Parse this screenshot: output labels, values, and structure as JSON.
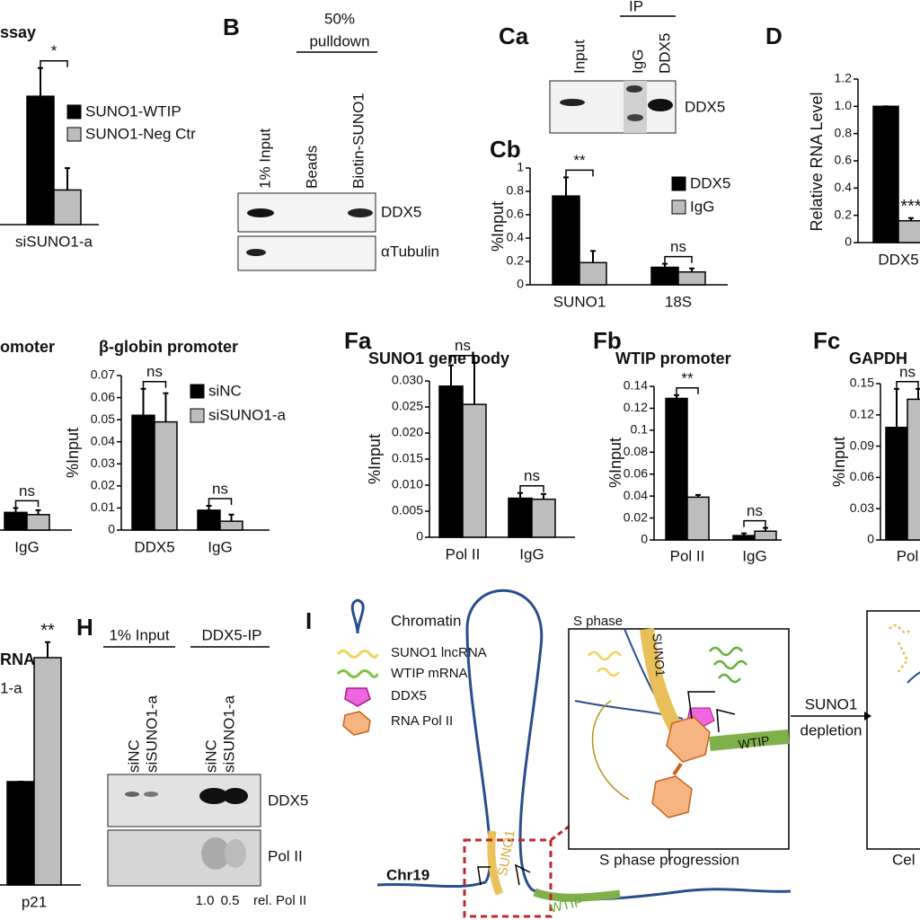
{
  "chart_data": [
    {
      "type": "bar",
      "title": "ssay",
      "categories": [
        "siSUNO1-a"
      ],
      "series": [
        {
          "name": "SUNO1-WTIP",
          "color": "#000000",
          "values": [
            1.0
          ],
          "errors": [
            0.22
          ]
        },
        {
          "name": "SUNO1-Neg Ctr",
          "color": "#bdbdbd",
          "values": [
            0.27
          ],
          "errors": [
            0.17
          ]
        }
      ],
      "significance": [
        "*"
      ],
      "ylim": [
        0,
        1.4
      ]
    },
    {
      "type": "bar",
      "title": "omoter",
      "categories": [
        "IgG"
      ],
      "series": [
        {
          "color": "#000000",
          "values": [
            0.008
          ],
          "errors": [
            0.002
          ]
        },
        {
          "color": "#bdbdbd",
          "values": [
            0.007
          ],
          "errors": [
            0.002
          ]
        }
      ],
      "significance": [
        "ns"
      ],
      "ylim": [
        0,
        0.07
      ]
    },
    {
      "type": "bar",
      "panel": "Cb",
      "ylabel": "%Input",
      "categories": [
        "SUNO1",
        "18S"
      ],
      "series": [
        {
          "name": "DDX5",
          "color": "#000000",
          "values": [
            0.76,
            0.15
          ],
          "errors": [
            0.16,
            0.03
          ]
        },
        {
          "name": "IgG",
          "color": "#bdbdbd",
          "values": [
            0.19,
            0.11
          ],
          "errors": [
            0.1,
            0.03
          ]
        }
      ],
      "significance": [
        "**",
        "ns"
      ],
      "ylim": [
        0,
        1
      ],
      "yticks": [
        0,
        0.2,
        0.4,
        0.6,
        0.8,
        1
      ],
      "legend": "upper right"
    },
    {
      "type": "bar",
      "panel": "D",
      "ylabel": "Relative RNA Level",
      "categories": [
        "DDX5"
      ],
      "series": [
        {
          "color": "#000000",
          "values": [
            1.0
          ],
          "errors": [
            0
          ]
        },
        {
          "color": "#bdbdbd",
          "values": [
            0.16
          ],
          "errors": [
            0.02
          ]
        }
      ],
      "significance": [
        "***"
      ],
      "ylim": [
        0,
        1.2
      ],
      "yticks": [
        0,
        0.2,
        0.4,
        0.6,
        0.8,
        {
          "value": 1,
          "label": "1.0"
        },
        1.2
      ]
    },
    {
      "type": "bar",
      "title": "β-globin promoter",
      "ylabel": "%Input",
      "categories": [
        "DDX5",
        "IgG"
      ],
      "series": [
        {
          "name": "siNC",
          "color": "#000000",
          "values": [
            0.052,
            0.009
          ],
          "errors": [
            0.012,
            0.002
          ]
        },
        {
          "name": "siSUNO1-a",
          "color": "#bdbdbd",
          "values": [
            0.049,
            0.004
          ],
          "errors": [
            0.013,
            0.003
          ]
        }
      ],
      "significance": [
        "ns",
        "ns"
      ],
      "ylim": [
        0,
        0.07
      ],
      "yticks": [
        0,
        0.01,
        0.02,
        0.03,
        0.04,
        0.05,
        0.06,
        0.07
      ],
      "legend": "upper right"
    },
    {
      "type": "bar",
      "panel": "Fa",
      "title": "SUNO1 gene body",
      "ylabel": "%Input",
      "categories": [
        "Pol II",
        "IgG"
      ],
      "series": [
        {
          "color": "#000000",
          "values": [
            0.029,
            0.0075
          ],
          "errors": [
            0.004,
            0.001
          ]
        },
        {
          "color": "#bdbdbd",
          "values": [
            0.0255,
            0.0073
          ],
          "errors": [
            0.008,
            0.001
          ]
        }
      ],
      "significance": [
        "ns",
        "ns"
      ],
      "ylim": [
        0,
        0.03
      ],
      "yticks": [
        0,
        0.005,
        {
          "value": 0.01,
          "label": "0.010"
        },
        0.015,
        {
          "value": 0.02,
          "label": "0.020"
        },
        0.025,
        {
          "value": 0.03,
          "label": "0.030"
        }
      ]
    },
    {
      "type": "bar",
      "panel": "Fb",
      "title": "WTIP promoter",
      "ylabel": "%Input",
      "categories": [
        "Pol II",
        "IgG"
      ],
      "series": [
        {
          "color": "#000000",
          "values": [
            0.129,
            0.004
          ],
          "errors": [
            0.003,
            0.002
          ]
        },
        {
          "color": "#bdbdbd",
          "values": [
            0.039,
            0.008
          ],
          "errors": [
            0.002,
            0.003
          ]
        }
      ],
      "significance": [
        "**",
        "ns"
      ],
      "ylim": [
        0,
        0.14
      ],
      "yticks": [
        0,
        0.02,
        0.04,
        0.06,
        0.08,
        0.1,
        0.12,
        0.14
      ]
    },
    {
      "type": "bar",
      "panel": "Fc",
      "title": "GAPDH",
      "ylabel": "%Input",
      "categories": [
        "Pol"
      ],
      "series": [
        {
          "color": "#000000",
          "values": [
            0.108
          ],
          "errors": [
            0.037
          ]
        },
        {
          "color": "#bdbdbd",
          "values": [
            0.135
          ],
          "errors": [
            0.01
          ]
        }
      ],
      "significance": [
        "ns"
      ],
      "ylim": [
        0,
        0.15
      ],
      "yticks": [
        0,
        0.03,
        0.06,
        0.09,
        0.12,
        0.15
      ]
    },
    {
      "type": "bar",
      "title": "RNA",
      "categories": [
        "p21"
      ],
      "series": [
        {
          "color": "#000000",
          "values": [
            1.0
          ],
          "errors": [
            0
          ]
        },
        {
          "name": "1-a",
          "color": "#bdbdbd",
          "values": [
            2.2
          ],
          "errors": [
            0.15
          ]
        }
      ],
      "significance": [
        "**"
      ],
      "ylim": [
        0,
        2.5
      ]
    }
  ],
  "panel_B": {
    "label": "B",
    "header": [
      "50%",
      "pulldown"
    ],
    "lanes": [
      "1% Input",
      "Beads",
      "Biotin-SUNO1"
    ],
    "rows": [
      "DDX5",
      "αTubulin"
    ]
  },
  "panel_Ca": {
    "label": "Ca",
    "header": "IP",
    "lanes": [
      "Input",
      "IgG",
      "DDX5"
    ],
    "rows": [
      "DDX5"
    ]
  },
  "panel_H": {
    "label": "H",
    "groups": [
      "1% Input",
      "DDX5-IP"
    ],
    "lanes": [
      "siNC",
      "siSUNO1-a",
      "siNC",
      "siSUNO1-a"
    ],
    "rows": [
      "DDX5",
      "Pol II"
    ],
    "quant": [
      "1.0",
      "0.5"
    ],
    "quant_label": "rel. Pol II"
  },
  "panel_I": {
    "label": "I",
    "legend": [
      "Chromatin",
      "SUNO1 lncRNA",
      "WTIP mRNA",
      "DDX5",
      "RNA Pol II"
    ],
    "box_title": "S phase",
    "box_genes": [
      "SUNO1",
      "WTIP"
    ],
    "arrow_label": [
      "SUNO1",
      "depletion"
    ],
    "outcome": "S phase progression",
    "chromosome": "Chr19",
    "zoom_genes": [
      "SUNO1",
      "WTIP"
    ],
    "right_outcome": "Cel"
  }
}
